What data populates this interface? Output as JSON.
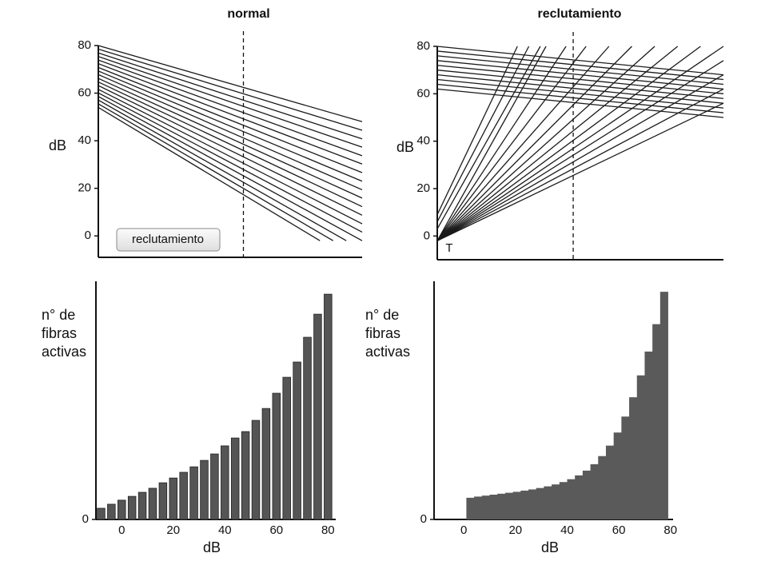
{
  "chart_data": [
    {
      "type": "line",
      "title": "normal",
      "ylabel": "dB",
      "button": "reclutamiento",
      "color": "#1a1a1a",
      "xlim": [
        0,
        100
      ],
      "ylim": [
        -9,
        80
      ],
      "yticks": [
        0,
        20,
        40,
        60,
        80
      ],
      "vline": 55,
      "series": [
        {
          "x": [
            0,
            84
          ],
          "values": [
            54.0,
            -2
          ]
        },
        {
          "x": [
            0,
            89
          ],
          "values": [
            55.5,
            -2
          ]
        },
        {
          "x": [
            0,
            94
          ],
          "values": [
            57.1,
            -2
          ]
        },
        {
          "x": [
            0,
            100
          ],
          "values": [
            58.6,
            -2
          ]
        },
        {
          "x": [
            0,
            100
          ],
          "values": [
            60.1,
            1.6
          ]
        },
        {
          "x": [
            0,
            100
          ],
          "values": [
            61.6,
            5.1
          ]
        },
        {
          "x": [
            0,
            100
          ],
          "values": [
            63.2,
            8.7
          ]
        },
        {
          "x": [
            0,
            100
          ],
          "values": [
            64.7,
            12.3
          ]
        },
        {
          "x": [
            0,
            100
          ],
          "values": [
            66.2,
            15.9
          ]
        },
        {
          "x": [
            0,
            100
          ],
          "values": [
            67.8,
            19.4
          ]
        },
        {
          "x": [
            0,
            100
          ],
          "values": [
            69.3,
            23.0
          ]
        },
        {
          "x": [
            0,
            100
          ],
          "values": [
            70.8,
            26.6
          ]
        },
        {
          "x": [
            0,
            100
          ],
          "values": [
            72.4,
            30.2
          ]
        },
        {
          "x": [
            0,
            100
          ],
          "values": [
            73.9,
            33.7
          ]
        },
        {
          "x": [
            0,
            100
          ],
          "values": [
            75.4,
            37.3
          ]
        },
        {
          "x": [
            0,
            100
          ],
          "values": [
            76.9,
            40.8
          ]
        },
        {
          "x": [
            0,
            100
          ],
          "values": [
            78.5,
            44.4
          ]
        },
        {
          "x": [
            0,
            100
          ],
          "values": [
            80.0,
            48.0
          ]
        }
      ]
    },
    {
      "type": "line",
      "title": "reclutamiento",
      "ylabel": "dB",
      "annotation": "T",
      "color": "#1a1a1a",
      "xlim": [
        0,
        100
      ],
      "ylim": [
        -10,
        80
      ],
      "yticks": [
        0,
        20,
        40,
        60,
        80
      ],
      "vline": 47.5,
      "series": [
        {
          "x": [
            0,
            100
          ],
          "values": [
            62,
            50
          ]
        },
        {
          "x": [
            0,
            100
          ],
          "values": [
            64,
            52
          ]
        },
        {
          "x": [
            0,
            100
          ],
          "values": [
            66,
            54
          ]
        },
        {
          "x": [
            0,
            100
          ],
          "values": [
            68,
            56
          ]
        },
        {
          "x": [
            0,
            100
          ],
          "values": [
            70,
            58
          ]
        },
        {
          "x": [
            0,
            100
          ],
          "values": [
            72,
            60
          ]
        },
        {
          "x": [
            0,
            100
          ],
          "values": [
            74,
            62
          ]
        },
        {
          "x": [
            0,
            100
          ],
          "values": [
            76,
            64
          ]
        },
        {
          "x": [
            0,
            100
          ],
          "values": [
            78,
            66
          ]
        },
        {
          "x": [
            0,
            100
          ],
          "values": [
            80,
            68
          ]
        },
        {
          "x": [
            0,
            28
          ],
          "values": [
            9,
            80
          ]
        },
        {
          "x": [
            0,
            32
          ],
          "values": [
            6,
            80
          ]
        },
        {
          "x": [
            0,
            36
          ],
          "values": [
            3,
            80
          ]
        },
        {
          "x": [
            0,
            38
          ],
          "values": [
            -2,
            80
          ]
        },
        {
          "x": [
            0,
            45
          ],
          "values": [
            -2,
            80
          ]
        },
        {
          "x": [
            0,
            52
          ],
          "values": [
            -2,
            80
          ]
        },
        {
          "x": [
            0,
            60
          ],
          "values": [
            -2,
            80
          ]
        },
        {
          "x": [
            0,
            68
          ],
          "values": [
            -2,
            80
          ]
        },
        {
          "x": [
            0,
            76
          ],
          "values": [
            -2,
            80
          ]
        },
        {
          "x": [
            0,
            84
          ],
          "values": [
            -2,
            80
          ]
        },
        {
          "x": [
            0,
            92
          ],
          "values": [
            -2,
            80
          ]
        },
        {
          "x": [
            0,
            100
          ],
          "values": [
            -2,
            80
          ]
        },
        {
          "x": [
            0,
            100
          ],
          "values": [
            -2,
            74
          ]
        },
        {
          "x": [
            0,
            100
          ],
          "values": [
            -2,
            68
          ]
        },
        {
          "x": [
            0,
            100
          ],
          "values": [
            -2,
            62
          ]
        },
        {
          "x": [
            0,
            100
          ],
          "values": [
            -2,
            56
          ]
        }
      ]
    },
    {
      "type": "bar",
      "ylabel": [
        "n° de",
        "fibras",
        "activas"
      ],
      "xlabel": "dB",
      "color": "#555555",
      "xlim": [
        -10,
        83
      ],
      "ylim": [
        0,
        100
      ],
      "xticks": [
        0,
        20,
        40,
        60,
        80
      ],
      "yticks": [
        0
      ],
      "x": [
        -8,
        -4,
        0,
        4,
        8,
        12,
        16,
        20,
        24,
        28,
        32,
        36,
        40,
        44,
        48,
        52,
        56,
        60,
        64,
        68,
        72,
        76,
        80
      ],
      "values": [
        4.7,
        6.4,
        8.1,
        9.7,
        11.4,
        13.1,
        15.4,
        17.4,
        19.8,
        22.1,
        24.8,
        27.5,
        30.9,
        34.2,
        36.9,
        41.6,
        46.6,
        53.0,
        59.7,
        66.1,
        76.5,
        86.2,
        94.6
      ]
    },
    {
      "type": "histogram",
      "ylabel": [
        "n° de",
        "fibras",
        "activas"
      ],
      "xlabel": "dB",
      "color": "#5a5a5a",
      "xlim": [
        -11.5,
        81
      ],
      "ylim": [
        0,
        100
      ],
      "xticks": [
        0,
        20,
        40,
        60,
        80
      ],
      "yticks": [
        0
      ],
      "bins": [
        1,
        4,
        7,
        10,
        13,
        16,
        19,
        22,
        25,
        28,
        31,
        34,
        37,
        40,
        43,
        46,
        49,
        52,
        55,
        58,
        61,
        64,
        67,
        70,
        73,
        76,
        79
      ],
      "values": [
        9.1,
        9.6,
        10.0,
        10.4,
        10.8,
        11.2,
        11.6,
        12.1,
        12.6,
        13.2,
        13.9,
        14.7,
        15.7,
        16.9,
        18.5,
        20.5,
        23.2,
        26.6,
        31.0,
        36.5,
        43.2,
        51.3,
        60.5,
        70.5,
        82.0,
        95.6
      ]
    }
  ]
}
